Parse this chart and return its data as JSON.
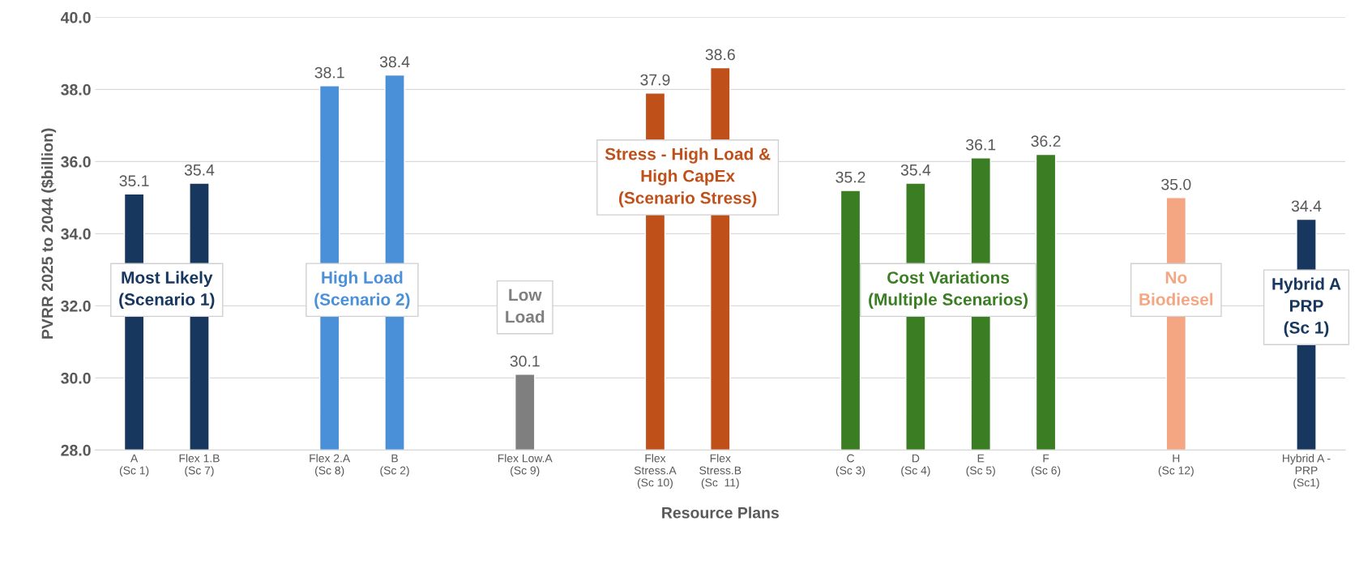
{
  "chart_data": {
    "type": "bar",
    "xlabel": "Resource Plans",
    "ylabel": "PVRR 2025 to 2044 ($billion)",
    "categories": [
      "A\n(Sc 1)",
      "Flex 1.B\n(Sc 7)",
      null,
      "Flex 2.A\n(Sc 8)",
      "B\n(Sc 2)",
      null,
      "Flex Low.A\n(Sc 9)",
      null,
      "Flex\nStress.A\n(Sc 10)",
      "Flex\nStress.B\n(Sc  11)",
      null,
      "C\n(Sc 3)",
      "D\n(Sc 4)",
      "E\n(Sc 5)",
      "F\n(Sc 6)",
      null,
      "H\n(Sc 12)",
      null,
      "Hybrid A -\nPRP\n(Sc1)"
    ],
    "series": [
      {
        "color": "#17375e",
        "values": [
          35.1,
          35.4,
          null,
          null,
          null,
          null,
          null,
          null,
          null,
          null,
          null,
          null,
          null,
          null,
          null,
          null,
          null,
          null,
          34.4
        ],
        "value_labels": [
          "35.1",
          "35.4",
          null,
          null,
          null,
          null,
          null,
          null,
          null,
          null,
          null,
          null,
          null,
          null,
          null,
          null,
          null,
          null,
          "34.4"
        ]
      },
      {
        "color": "#4a90d9",
        "values": [
          null,
          null,
          null,
          38.1,
          38.4,
          null,
          null,
          null,
          null,
          null,
          null,
          null,
          null,
          null,
          null,
          null,
          null,
          null,
          null
        ],
        "value_labels": [
          null,
          null,
          null,
          "38.1",
          "38.4",
          null,
          null,
          null,
          null,
          null,
          null,
          null,
          null,
          null,
          null,
          null,
          null,
          null,
          null
        ]
      },
      {
        "color": "#7f7f7f",
        "values": [
          null,
          null,
          null,
          null,
          null,
          null,
          30.1,
          null,
          null,
          null,
          null,
          null,
          null,
          null,
          null,
          null,
          null,
          null,
          null
        ],
        "value_labels": [
          null,
          null,
          null,
          null,
          null,
          null,
          "30.1",
          null,
          null,
          null,
          null,
          null,
          null,
          null,
          null,
          null,
          null,
          null,
          null
        ]
      },
      {
        "color": "#c0501a",
        "values": [
          null,
          null,
          null,
          null,
          null,
          null,
          null,
          null,
          37.9,
          38.6,
          null,
          null,
          null,
          null,
          null,
          null,
          null,
          null,
          null
        ],
        "value_labels": [
          null,
          null,
          null,
          null,
          null,
          null,
          null,
          null,
          "37.9",
          "38.6",
          null,
          null,
          null,
          null,
          null,
          null,
          null,
          null,
          null
        ]
      },
      {
        "color": "#3a7d22",
        "values": [
          null,
          null,
          null,
          null,
          null,
          null,
          null,
          null,
          null,
          null,
          null,
          35.2,
          35.4,
          36.1,
          36.2,
          null,
          null,
          null,
          null
        ],
        "value_labels": [
          null,
          null,
          null,
          null,
          null,
          null,
          null,
          null,
          null,
          null,
          null,
          "35.2",
          "35.4",
          "36.1",
          "36.2",
          null,
          null,
          null,
          null
        ]
      },
      {
        "color": "#f4a582",
        "values": [
          null,
          null,
          null,
          null,
          null,
          null,
          null,
          null,
          null,
          null,
          null,
          null,
          null,
          null,
          null,
          null,
          35.0,
          null,
          null
        ],
        "value_labels": [
          null,
          null,
          null,
          null,
          null,
          null,
          null,
          null,
          null,
          null,
          null,
          null,
          null,
          null,
          null,
          null,
          "35.0",
          null,
          null
        ]
      }
    ],
    "annotations": [
      "Most Likely\n(Scenario 1)",
      "High Load\n(Scenario 2)",
      "Low\nLoad",
      "Stress - High Load &\nHigh CapEx\n(Scenario Stress)",
      "Cost Variations\n(Multiple Scenarios)",
      "No\nBiodiesel",
      "Hybrid A\nPRP\n(Sc 1)"
    ],
    "ylim": [
      28,
      40
    ],
    "yticks": [
      {
        "value": 28,
        "label": "28.0"
      },
      {
        "value": 30,
        "label": "30.0"
      },
      {
        "value": 32,
        "label": "32.0"
      },
      {
        "value": 34,
        "label": "34.0"
      },
      {
        "value": 36,
        "label": "36.0"
      },
      {
        "value": 38,
        "label": "38.0"
      },
      {
        "value": 40,
        "label": "40.0"
      }
    ],
    "grid": "y"
  }
}
